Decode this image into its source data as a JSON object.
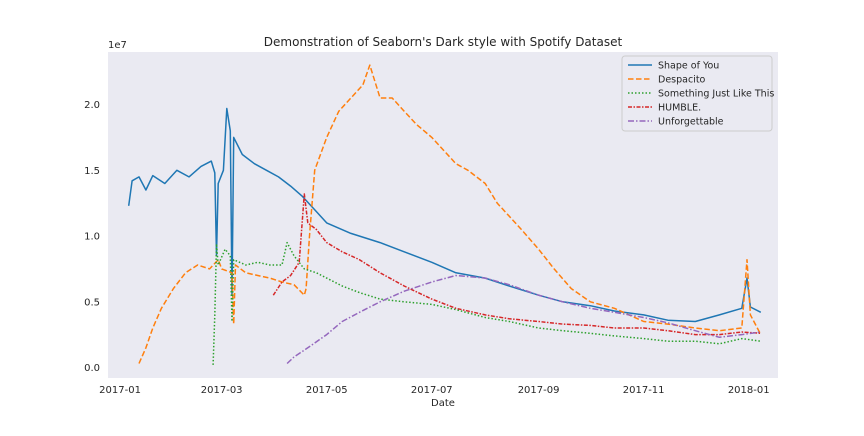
{
  "chart_data": {
    "type": "line",
    "title": "Demonstration of Seaborn's Dark style with Spotify Dataset",
    "xlabel": "Date",
    "ylabel": "",
    "y_offset_label": "1e7",
    "x_range": [
      "2016-12-25",
      "2018-01-18"
    ],
    "y_range": [
      -0.08,
      2.4
    ],
    "x_ticks": [
      "2017-01-01",
      "2017-03-01",
      "2017-05-01",
      "2017-07-01",
      "2017-09-01",
      "2017-11-01",
      "2018-01-01"
    ],
    "x_tick_labels": [
      "2017-01",
      "2017-03",
      "2017-05",
      "2017-07",
      "2017-09",
      "2017-11",
      "2018-01"
    ],
    "y_ticks": [
      0.0,
      0.5,
      1.0,
      1.5,
      2.0
    ],
    "y_tick_labels": [
      "0.0",
      "0.5",
      "1.0",
      "1.5",
      "2.0"
    ],
    "grid": false,
    "legend_position": "top-right",
    "series": [
      {
        "name": "Shape of You",
        "color": "#1f77b4",
        "style": "solid",
        "points": [
          [
            "2017-01-06",
            1.23
          ],
          [
            "2017-01-08",
            1.42
          ],
          [
            "2017-01-12",
            1.45
          ],
          [
            "2017-01-16",
            1.35
          ],
          [
            "2017-01-20",
            1.46
          ],
          [
            "2017-01-27",
            1.4
          ],
          [
            "2017-02-03",
            1.5
          ],
          [
            "2017-02-10",
            1.45
          ],
          [
            "2017-02-17",
            1.53
          ],
          [
            "2017-02-23",
            1.57
          ],
          [
            "2017-02-25",
            1.48
          ],
          [
            "2017-02-26",
            0.85
          ],
          [
            "2017-02-27",
            1.4
          ],
          [
            "2017-03-02",
            1.5
          ],
          [
            "2017-03-04",
            1.97
          ],
          [
            "2017-03-06",
            1.8
          ],
          [
            "2017-03-07",
            0.55
          ],
          [
            "2017-03-08",
            1.75
          ],
          [
            "2017-03-13",
            1.62
          ],
          [
            "2017-03-20",
            1.55
          ],
          [
            "2017-03-27",
            1.5
          ],
          [
            "2017-04-03",
            1.45
          ],
          [
            "2017-04-10",
            1.38
          ],
          [
            "2017-04-17",
            1.3
          ],
          [
            "2017-04-24",
            1.2
          ],
          [
            "2017-05-01",
            1.1
          ],
          [
            "2017-05-15",
            1.02
          ],
          [
            "2017-06-01",
            0.95
          ],
          [
            "2017-06-15",
            0.88
          ],
          [
            "2017-07-01",
            0.8
          ],
          [
            "2017-07-15",
            0.72
          ],
          [
            "2017-08-01",
            0.68
          ],
          [
            "2017-08-15",
            0.62
          ],
          [
            "2017-09-01",
            0.55
          ],
          [
            "2017-09-15",
            0.5
          ],
          [
            "2017-10-01",
            0.47
          ],
          [
            "2017-10-15",
            0.43
          ],
          [
            "2017-11-01",
            0.4
          ],
          [
            "2017-11-15",
            0.36
          ],
          [
            "2017-12-01",
            0.35
          ],
          [
            "2017-12-15",
            0.4
          ],
          [
            "2017-12-28",
            0.45
          ],
          [
            "2017-12-31",
            0.68
          ],
          [
            "2018-01-02",
            0.46
          ],
          [
            "2018-01-08",
            0.42
          ]
        ]
      },
      {
        "name": "Despacito",
        "color": "#ff7f0e",
        "style": "dashed",
        "points": [
          [
            "2017-01-12",
            0.03
          ],
          [
            "2017-01-16",
            0.15
          ],
          [
            "2017-01-20",
            0.3
          ],
          [
            "2017-01-25",
            0.45
          ],
          [
            "2017-02-01",
            0.6
          ],
          [
            "2017-02-08",
            0.72
          ],
          [
            "2017-02-15",
            0.78
          ],
          [
            "2017-02-22",
            0.75
          ],
          [
            "2017-02-27",
            0.82
          ],
          [
            "2017-03-01",
            0.75
          ],
          [
            "2017-03-07",
            0.72
          ],
          [
            "2017-03-08",
            0.33
          ],
          [
            "2017-03-09",
            0.78
          ],
          [
            "2017-03-15",
            0.72
          ],
          [
            "2017-03-22",
            0.7
          ],
          [
            "2017-03-29",
            0.68
          ],
          [
            "2017-04-05",
            0.65
          ],
          [
            "2017-04-12",
            0.63
          ],
          [
            "2017-04-18",
            0.55
          ],
          [
            "2017-04-19",
            0.6
          ],
          [
            "2017-04-21",
            1.0
          ],
          [
            "2017-04-24",
            1.5
          ],
          [
            "2017-05-01",
            1.75
          ],
          [
            "2017-05-08",
            1.95
          ],
          [
            "2017-05-15",
            2.05
          ],
          [
            "2017-05-22",
            2.15
          ],
          [
            "2017-05-26",
            2.3
          ],
          [
            "2017-06-01",
            2.05
          ],
          [
            "2017-06-08",
            2.05
          ],
          [
            "2017-06-15",
            1.95
          ],
          [
            "2017-06-22",
            1.85
          ],
          [
            "2017-07-01",
            1.75
          ],
          [
            "2017-07-08",
            1.65
          ],
          [
            "2017-07-15",
            1.55
          ],
          [
            "2017-07-22",
            1.5
          ],
          [
            "2017-08-01",
            1.4
          ],
          [
            "2017-08-08",
            1.25
          ],
          [
            "2017-08-15",
            1.15
          ],
          [
            "2017-08-22",
            1.05
          ],
          [
            "2017-09-01",
            0.9
          ],
          [
            "2017-09-10",
            0.75
          ],
          [
            "2017-09-20",
            0.6
          ],
          [
            "2017-10-01",
            0.5
          ],
          [
            "2017-10-15",
            0.45
          ],
          [
            "2017-11-01",
            0.35
          ],
          [
            "2017-11-15",
            0.33
          ],
          [
            "2017-12-01",
            0.3
          ],
          [
            "2017-12-15",
            0.28
          ],
          [
            "2017-12-28",
            0.3
          ],
          [
            "2017-12-31",
            0.82
          ],
          [
            "2018-01-02",
            0.4
          ],
          [
            "2018-01-08",
            0.25
          ]
        ]
      },
      {
        "name": "Something Just Like This",
        "color": "#2ca02c",
        "style": "dotted",
        "points": [
          [
            "2017-02-24",
            0.02
          ],
          [
            "2017-02-25",
            0.4
          ],
          [
            "2017-02-26",
            0.94
          ],
          [
            "2017-02-27",
            0.78
          ],
          [
            "2017-03-03",
            0.9
          ],
          [
            "2017-03-06",
            0.85
          ],
          [
            "2017-03-07",
            0.35
          ],
          [
            "2017-03-08",
            0.82
          ],
          [
            "2017-03-15",
            0.78
          ],
          [
            "2017-03-22",
            0.8
          ],
          [
            "2017-03-29",
            0.78
          ],
          [
            "2017-04-05",
            0.78
          ],
          [
            "2017-04-08",
            0.95
          ],
          [
            "2017-04-12",
            0.85
          ],
          [
            "2017-04-18",
            0.75
          ],
          [
            "2017-04-25",
            0.72
          ],
          [
            "2017-05-01",
            0.68
          ],
          [
            "2017-05-10",
            0.62
          ],
          [
            "2017-05-20",
            0.57
          ],
          [
            "2017-06-01",
            0.52
          ],
          [
            "2017-06-15",
            0.5
          ],
          [
            "2017-07-01",
            0.48
          ],
          [
            "2017-07-15",
            0.44
          ],
          [
            "2017-08-01",
            0.38
          ],
          [
            "2017-08-15",
            0.35
          ],
          [
            "2017-09-01",
            0.3
          ],
          [
            "2017-09-15",
            0.28
          ],
          [
            "2017-10-01",
            0.26
          ],
          [
            "2017-10-15",
            0.24
          ],
          [
            "2017-11-01",
            0.22
          ],
          [
            "2017-11-15",
            0.2
          ],
          [
            "2017-12-01",
            0.2
          ],
          [
            "2017-12-15",
            0.18
          ],
          [
            "2017-12-28",
            0.22
          ],
          [
            "2018-01-08",
            0.2
          ]
        ]
      },
      {
        "name": "HUMBLE.",
        "color": "#d62728",
        "style": "dashdot-dense",
        "points": [
          [
            "2017-03-31",
            0.55
          ],
          [
            "2017-04-05",
            0.65
          ],
          [
            "2017-04-10",
            0.7
          ],
          [
            "2017-04-15",
            0.8
          ],
          [
            "2017-04-18",
            1.32
          ],
          [
            "2017-04-20",
            1.1
          ],
          [
            "2017-04-25",
            1.05
          ],
          [
            "2017-05-01",
            0.95
          ],
          [
            "2017-05-10",
            0.88
          ],
          [
            "2017-05-20",
            0.82
          ],
          [
            "2017-06-01",
            0.72
          ],
          [
            "2017-06-15",
            0.62
          ],
          [
            "2017-07-01",
            0.52
          ],
          [
            "2017-07-15",
            0.45
          ],
          [
            "2017-08-01",
            0.4
          ],
          [
            "2017-08-15",
            0.37
          ],
          [
            "2017-09-01",
            0.35
          ],
          [
            "2017-09-15",
            0.33
          ],
          [
            "2017-10-01",
            0.32
          ],
          [
            "2017-10-15",
            0.3
          ],
          [
            "2017-11-01",
            0.3
          ],
          [
            "2017-11-15",
            0.28
          ],
          [
            "2017-12-01",
            0.25
          ],
          [
            "2017-12-15",
            0.25
          ],
          [
            "2017-12-28",
            0.27
          ],
          [
            "2018-01-08",
            0.26
          ]
        ]
      },
      {
        "name": "Unforgettable",
        "color": "#9467bd",
        "style": "dashdot",
        "points": [
          [
            "2017-04-08",
            0.03
          ],
          [
            "2017-04-12",
            0.08
          ],
          [
            "2017-04-20",
            0.15
          ],
          [
            "2017-05-01",
            0.25
          ],
          [
            "2017-05-10",
            0.35
          ],
          [
            "2017-05-20",
            0.42
          ],
          [
            "2017-06-01",
            0.5
          ],
          [
            "2017-06-15",
            0.58
          ],
          [
            "2017-07-01",
            0.65
          ],
          [
            "2017-07-15",
            0.7
          ],
          [
            "2017-08-01",
            0.68
          ],
          [
            "2017-08-15",
            0.63
          ],
          [
            "2017-09-01",
            0.55
          ],
          [
            "2017-09-15",
            0.5
          ],
          [
            "2017-10-01",
            0.45
          ],
          [
            "2017-10-15",
            0.42
          ],
          [
            "2017-11-01",
            0.38
          ],
          [
            "2017-11-15",
            0.34
          ],
          [
            "2017-12-01",
            0.28
          ],
          [
            "2017-12-15",
            0.23
          ],
          [
            "2017-12-28",
            0.25
          ],
          [
            "2018-01-08",
            0.27
          ]
        ]
      }
    ]
  }
}
